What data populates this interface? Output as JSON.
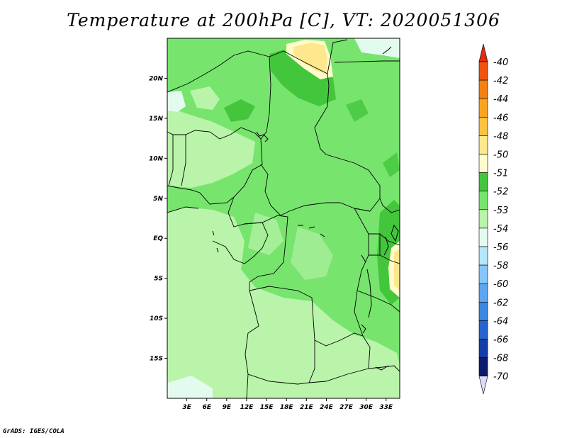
{
  "title": "Temperature at 200hPa [C], VT: 2020051306",
  "credit": "GrADS: IGES/COLA",
  "map": {
    "lon_range": [
      0,
      35
    ],
    "lat_range": [
      -20,
      25
    ],
    "x_ticks": [
      "3E",
      "6E",
      "9E",
      "12E",
      "15E",
      "18E",
      "21E",
      "24E",
      "27E",
      "30E",
      "33E"
    ],
    "y_ticks": [
      "20N",
      "15N",
      "10N",
      "5N",
      "EQ",
      "5S",
      "10S",
      "15S"
    ],
    "background_class": "-53"
  },
  "colorbar": {
    "labels": [
      "-40",
      "-42",
      "-44",
      "-46",
      "-48",
      "-50",
      "-51",
      "-52",
      "-53",
      "-54",
      "-56",
      "-58",
      "-60",
      "-62",
      "-64",
      "-66",
      "-68",
      "-70"
    ],
    "colors": [
      "#e02c0f",
      "#f05310",
      "#f6800f",
      "#f9a41e",
      "#fbc23f",
      "#fee78c",
      "#fffccb",
      "#43c63c",
      "#77e46e",
      "#b9f4aa",
      "#e3fbef",
      "#b5e6fb",
      "#86c6f8",
      "#5ba6ef",
      "#3d86e1",
      "#2764cf",
      "#133ea8",
      "#0b1c6d",
      "#dcdcf8"
    ]
  }
}
